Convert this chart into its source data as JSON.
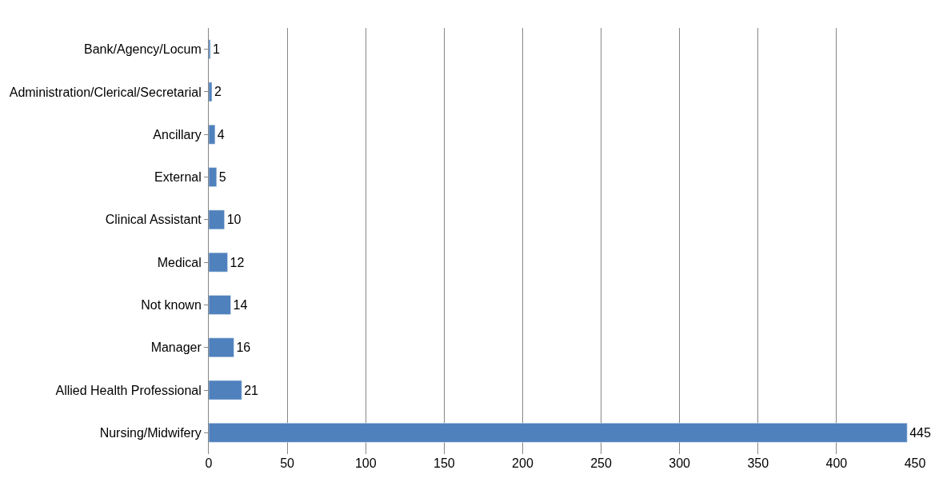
{
  "chart_data": {
    "type": "bar",
    "orientation": "horizontal",
    "categories": [
      "Bank/Agency/Locum",
      "Administration/Clerical/Secretarial",
      "Ancillary",
      "External",
      "Clinical Assistant",
      "Medical",
      "Not known",
      "Manager",
      "Allied Health Professional",
      "Nursing/Midwifery"
    ],
    "values": [
      1,
      2,
      4,
      5,
      10,
      12,
      14,
      16,
      21,
      445
    ],
    "color": "#4f81bd",
    "xlim": [
      0,
      450
    ],
    "xticks": [
      0,
      50,
      100,
      150,
      200,
      250,
      300,
      350,
      400,
      450
    ],
    "grid": "x",
    "data_labels": true,
    "legend": false
  }
}
